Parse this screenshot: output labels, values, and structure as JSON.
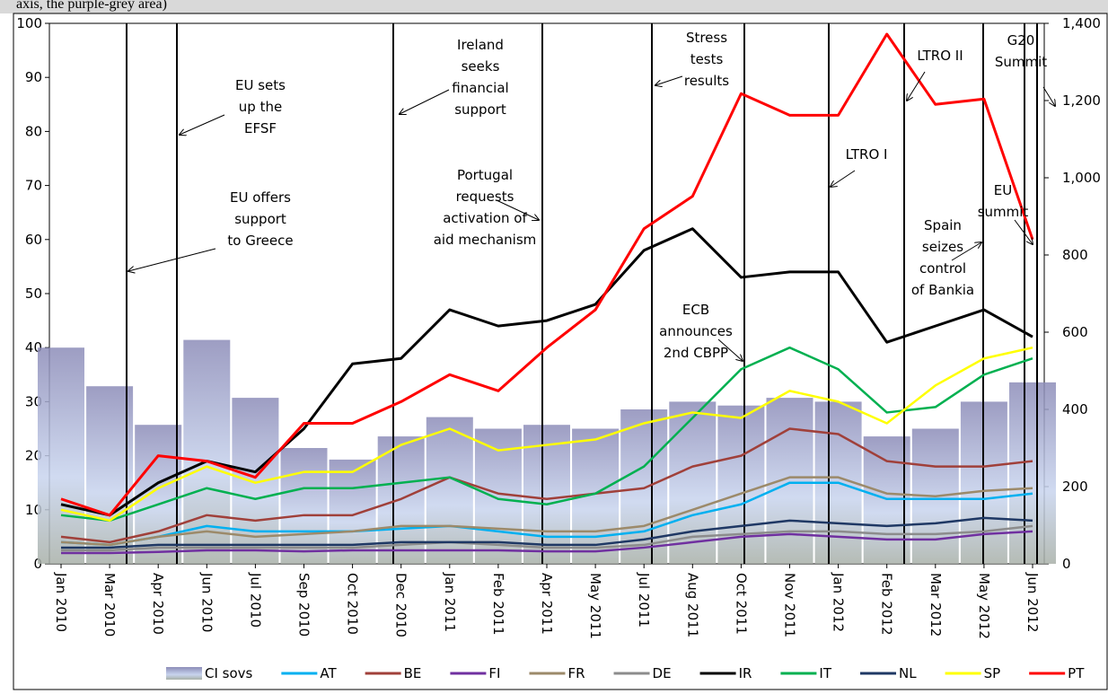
{
  "chart_data": {
    "type": "line",
    "caption": "axis, the purple-grey area)",
    "categories": [
      "Jan 2010",
      "Mar 2010",
      "Apr 2010",
      "Jun 2010",
      "Jul 2010",
      "Sep 2010",
      "Oct 2010",
      "Dec 2010",
      "Jan 2011",
      "Feb 2011",
      "Apr 2011",
      "May 2011",
      "Jul 2011",
      "Aug 2011",
      "Oct 2011",
      "Nov 2011",
      "Jan 2012",
      "Feb 2012",
      "Mar 2012",
      "May 2012",
      "Jun 2012"
    ],
    "ylim": [
      0,
      100
    ],
    "yticks": [
      0,
      10,
      20,
      30,
      40,
      50,
      60,
      70,
      80,
      90,
      100
    ],
    "y2lim": [
      0,
      1400
    ],
    "y2ticks": [
      0,
      200,
      400,
      600,
      800,
      {
        "value": 1000,
        "label": "1,000"
      },
      {
        "value": 1200,
        "label": "1,200"
      },
      {
        "value": 1400,
        "label": "1,400"
      }
    ],
    "series": [
      {
        "name": "CI sovs",
        "type": "bar",
        "axis": "y2",
        "color": "#8c8cb8",
        "values": [
          560,
          460,
          360,
          580,
          430,
          300,
          270,
          330,
          380,
          350,
          360,
          350,
          400,
          420,
          410,
          430,
          420,
          330,
          350,
          420,
          470
        ]
      },
      {
        "name": "AT",
        "color": "#00b0f0",
        "values": [
          4,
          3.5,
          5,
          7,
          6,
          6,
          6,
          6.5,
          7,
          6,
          5,
          5,
          6,
          9,
          11,
          15,
          15,
          12,
          12,
          12,
          13
        ]
      },
      {
        "name": "BE",
        "color": "#a0403a",
        "values": [
          5,
          4,
          6,
          9,
          8,
          9,
          9,
          12,
          16,
          13,
          12,
          13,
          14,
          18,
          20,
          25,
          24,
          19,
          18,
          18,
          19
        ]
      },
      {
        "name": "FI",
        "color": "#7030a0",
        "values": [
          2,
          2,
          2.2,
          2.5,
          2.5,
          2.3,
          2.5,
          2.5,
          2.5,
          2.5,
          2.3,
          2.3,
          3,
          4,
          5,
          5.5,
          5,
          4.5,
          4.5,
          5.5,
          6
        ]
      },
      {
        "name": "FR",
        "color": "#9c8a6a",
        "values": [
          4,
          3.5,
          5,
          6,
          5,
          5.5,
          6,
          7,
          7,
          6.5,
          6,
          6,
          7,
          10,
          13,
          16,
          16,
          13,
          12.5,
          13.5,
          14
        ]
      },
      {
        "name": "DE",
        "color": "#8c8c8c",
        "values": [
          2.5,
          2.5,
          3,
          3,
          3,
          3,
          3,
          3.5,
          4,
          3.5,
          3,
          3,
          3.5,
          5,
          5.5,
          6,
          6,
          5.5,
          5.5,
          6,
          7
        ]
      },
      {
        "name": "IR",
        "color": "#000000",
        "values": [
          11,
          9,
          15,
          19,
          17,
          25,
          37,
          38,
          47,
          44,
          45,
          48,
          58,
          62,
          53,
          54,
          54,
          41,
          44,
          47,
          42
        ]
      },
      {
        "name": "IT",
        "color": "#00b050",
        "values": [
          9,
          8,
          11,
          14,
          12,
          14,
          14,
          15,
          16,
          12,
          11,
          13,
          18,
          27,
          36,
          40,
          36,
          28,
          29,
          35,
          38
        ]
      },
      {
        "name": "NL",
        "color": "#1f3864",
        "values": [
          3,
          3,
          3.5,
          3.5,
          3.5,
          3.5,
          3.5,
          4,
          4,
          4,
          3.5,
          3.5,
          4.5,
          6,
          7,
          8,
          7.5,
          7,
          7.5,
          8.5,
          8
        ]
      },
      {
        "name": "SP",
        "color": "#ffff00",
        "values": [
          10,
          8,
          14,
          18,
          15,
          17,
          17,
          22,
          25,
          21,
          22,
          23,
          26,
          28,
          27,
          32,
          30,
          26,
          33,
          38,
          40
        ]
      },
      {
        "name": "PT",
        "color": "#ff0000",
        "values": [
          12,
          9,
          20,
          19,
          16,
          26,
          26,
          30,
          35,
          32,
          40,
          47,
          62,
          68,
          87,
          83,
          83,
          98,
          85,
          86,
          60
        ]
      }
    ],
    "annotations": [
      [
        "EU offers",
        "support",
        "to Greece"
      ],
      [
        "EU sets",
        "up the",
        "EFSF"
      ],
      [
        "Ireland",
        "seeks",
        "financial",
        "support"
      ],
      [
        "Portugal",
        "requests",
        "activation of",
        "aid mechanism"
      ],
      [
        "Stress",
        "tests",
        "results"
      ],
      [
        "ECB",
        "announces",
        "2nd CBPP"
      ],
      [
        "LTRO I"
      ],
      [
        "LTRO II"
      ],
      [
        "G20",
        "Summit"
      ],
      [
        "EU",
        "summit"
      ],
      [
        "Spain",
        "seizes",
        "control",
        "of Bankia"
      ]
    ]
  }
}
